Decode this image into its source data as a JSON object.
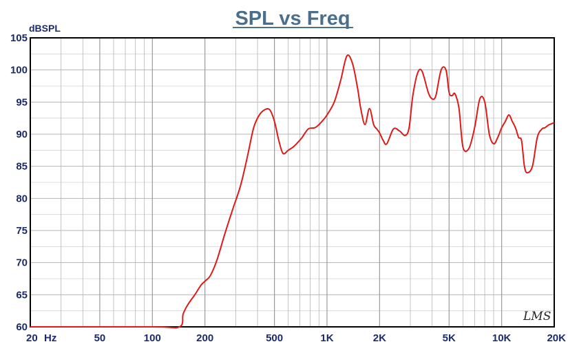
{
  "chart_data": {
    "type": "line",
    "title": "SPL vs Freq",
    "ylabel": "dBSPL",
    "xlabel": "",
    "xscale": "log",
    "xlim": [
      20,
      20000
    ],
    "ylim": [
      60,
      105
    ],
    "grid": true,
    "legend": "none",
    "watermark": "LMS",
    "colors": {
      "line": "#e01818",
      "frame": "#000000",
      "grid": "#b4b4b4",
      "labels": "#1a2a6c",
      "title": "#4a6f8c"
    },
    "x_ticks": [
      {
        "value": 20,
        "label": "20"
      },
      {
        "value": 50,
        "label": "50"
      },
      {
        "value": 100,
        "label": "100"
      },
      {
        "value": 200,
        "label": "200"
      },
      {
        "value": 500,
        "label": "500"
      },
      {
        "value": 1000,
        "label": "1K"
      },
      {
        "value": 2000,
        "label": "2K"
      },
      {
        "value": 5000,
        "label": "5K"
      },
      {
        "value": 10000,
        "label": "10K"
      },
      {
        "value": 20000,
        "label": "20K"
      }
    ],
    "x_unit_label": "Hz",
    "y_ticks": [
      60,
      65,
      70,
      75,
      80,
      85,
      90,
      95,
      100,
      105
    ],
    "series": [
      {
        "x": [
          20,
          100,
          143,
          150,
          160,
          175,
          190,
          200,
          215,
          235,
          260,
          290,
          320,
          350,
          380,
          410,
          440,
          470,
          500,
          530,
          560,
          600,
          640,
          680,
          720,
          780,
          850,
          900,
          950,
          1000,
          1100,
          1200,
          1300,
          1400,
          1500,
          1560,
          1650,
          1750,
          1850,
          1930,
          2000,
          2100,
          2200,
          2400,
          2600,
          2800,
          2950,
          3100,
          3300,
          3500,
          3800,
          4000,
          4200,
          4500,
          4800,
          5000,
          5200,
          5400,
          5700,
          6000,
          6500,
          7000,
          7500,
          8000,
          8500,
          9000,
          9500,
          10000,
          10500,
          11000,
          11500,
          12000,
          12500,
          13000,
          13500,
          14000,
          15000,
          16000,
          17000,
          17700,
          18500,
          19200,
          20000
        ],
        "y": [
          60,
          60,
          60,
          62,
          63.5,
          65,
          66.5,
          67.1,
          68,
          70.5,
          74.5,
          78.5,
          82,
          86.5,
          91,
          93,
          93.8,
          93.8,
          92,
          89,
          87,
          87.5,
          88,
          88.7,
          89.5,
          90.8,
          91,
          91.5,
          92.2,
          93,
          95,
          98.5,
          102.2,
          101,
          97,
          94,
          91.5,
          94,
          91.5,
          90.8,
          90.2,
          89,
          88.5,
          90.8,
          90.5,
          89.8,
          91,
          96,
          99.5,
          99.8,
          96.5,
          95.5,
          96,
          100,
          100,
          96.5,
          96,
          96.3,
          94,
          88,
          87.8,
          91,
          95.5,
          95,
          90,
          88.5,
          89.5,
          91,
          92,
          93,
          92,
          91,
          89.5,
          89,
          85,
          84,
          85,
          89.5,
          90.8,
          91,
          91.4,
          91.6,
          91.8
        ]
      }
    ]
  }
}
